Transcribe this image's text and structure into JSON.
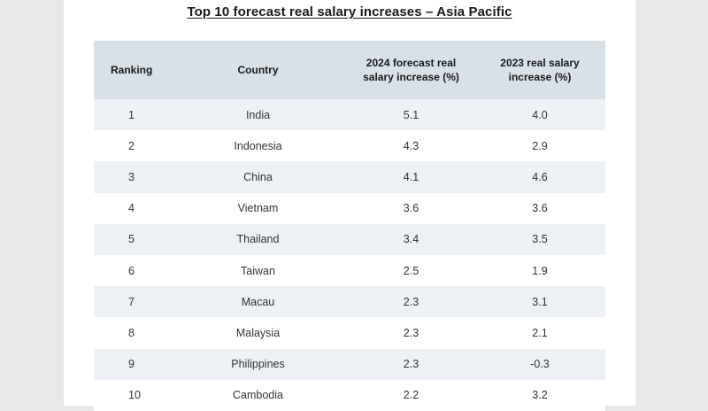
{
  "title": "Top 10 forecast real salary increases – Asia Pacific",
  "table": {
    "headers": {
      "ranking": "Ranking",
      "country": "Country",
      "forecast_2024": "2024 forecast real salary increase (%)",
      "actual_2023": "2023 real salary increase (%)"
    },
    "rows": [
      {
        "rank": "1",
        "country": "India",
        "forecast_2024": "5.1",
        "actual_2023": "4.0"
      },
      {
        "rank": "2",
        "country": "Indonesia",
        "forecast_2024": "4.3",
        "actual_2023": "2.9"
      },
      {
        "rank": "3",
        "country": "China",
        "forecast_2024": "4.1",
        "actual_2023": "4.6"
      },
      {
        "rank": "4",
        "country": "Vietnam",
        "forecast_2024": "3.6",
        "actual_2023": "3.6"
      },
      {
        "rank": "5",
        "country": "Thailand",
        "forecast_2024": "3.4",
        "actual_2023": "3.5"
      },
      {
        "rank": "6",
        "country": "Taiwan",
        "forecast_2024": "2.5",
        "actual_2023": "1.9"
      },
      {
        "rank": "7",
        "country": "Macau",
        "forecast_2024": "2.3",
        "actual_2023": "3.1"
      },
      {
        "rank": "8",
        "country": "Malaysia",
        "forecast_2024": "2.3",
        "actual_2023": "2.1"
      },
      {
        "rank": "9",
        "country": "Philippines",
        "forecast_2024": "2.3",
        "actual_2023": "-0.3"
      },
      {
        "rank": "10",
        "country": "Cambodia",
        "forecast_2024": "2.2",
        "actual_2023": "3.2"
      }
    ]
  },
  "colors": {
    "header_bg": "#d8e0e8",
    "stripe_bg": "#edf1f5",
    "page_bg": "#ffffff",
    "outer_bg": "#e8e8e8"
  }
}
